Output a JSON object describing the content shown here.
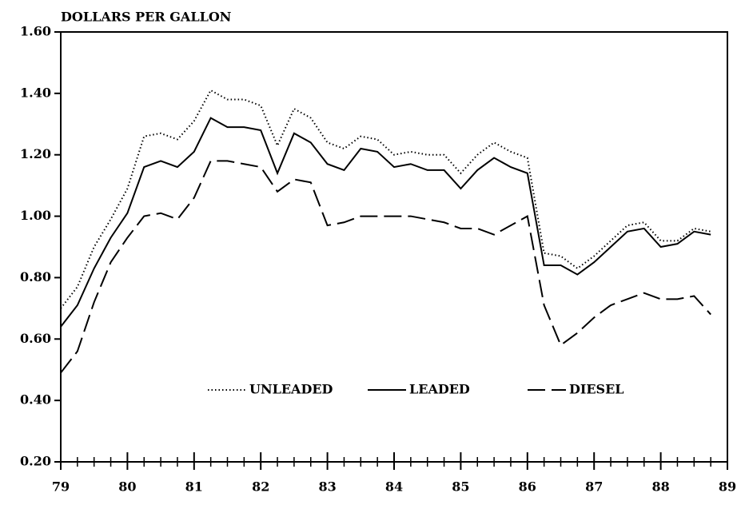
{
  "chart_data": {
    "type": "line",
    "y_axis_label": "DOLLARS PER GALLON",
    "x": [
      79,
      79.25,
      79.5,
      79.75,
      80,
      80.25,
      80.5,
      80.75,
      81,
      81.25,
      81.5,
      81.75,
      82,
      82.25,
      82.5,
      82.75,
      83,
      83.25,
      83.5,
      83.75,
      84,
      84.25,
      84.5,
      84.75,
      85,
      85.25,
      85.5,
      85.75,
      86,
      86.25,
      86.5,
      86.75,
      87,
      87.25,
      87.5,
      87.75,
      88,
      88.25,
      88.5,
      88.75
    ],
    "series": [
      {
        "name": "UNLEADED",
        "color": "#000000",
        "style": "dotted",
        "values": [
          0.7,
          0.77,
          0.9,
          0.99,
          1.09,
          1.26,
          1.27,
          1.25,
          1.31,
          1.41,
          1.38,
          1.38,
          1.36,
          1.23,
          1.35,
          1.32,
          1.24,
          1.22,
          1.26,
          1.25,
          1.2,
          1.21,
          1.2,
          1.2,
          1.14,
          1.2,
          1.24,
          1.21,
          1.19,
          0.88,
          0.87,
          0.83,
          0.87,
          0.92,
          0.97,
          0.98,
          0.92,
          0.92,
          0.96,
          0.95
        ]
      },
      {
        "name": "LEADED",
        "color": "#000000",
        "style": "solid",
        "values": [
          0.64,
          0.71,
          0.83,
          0.93,
          1.01,
          1.16,
          1.18,
          1.16,
          1.21,
          1.32,
          1.29,
          1.29,
          1.28,
          1.14,
          1.27,
          1.24,
          1.17,
          1.15,
          1.22,
          1.21,
          1.16,
          1.17,
          1.15,
          1.15,
          1.09,
          1.15,
          1.19,
          1.16,
          1.14,
          0.84,
          0.84,
          0.81,
          0.85,
          0.9,
          0.95,
          0.96,
          0.9,
          0.91,
          0.95,
          0.94
        ]
      },
      {
        "name": "DIESEL",
        "color": "#000000",
        "style": "dashed",
        "values": [
          0.49,
          0.56,
          0.72,
          0.85,
          0.93,
          1.0,
          1.01,
          0.99,
          1.06,
          1.18,
          1.18,
          1.17,
          1.16,
          1.08,
          1.12,
          1.11,
          0.97,
          0.98,
          1.0,
          1.0,
          1.0,
          1.0,
          0.99,
          0.98,
          0.96,
          0.96,
          0.94,
          0.97,
          1.0,
          0.71,
          0.58,
          0.62,
          0.67,
          0.71,
          0.73,
          0.75,
          0.73,
          0.73,
          0.74,
          0.68
        ]
      }
    ],
    "xlim": [
      79,
      89
    ],
    "xticks": [
      79,
      80,
      81,
      82,
      83,
      84,
      85,
      86,
      87,
      88,
      89
    ],
    "ylim": [
      0.2,
      1.6
    ],
    "yticks": [
      {
        "value": 0.2,
        "label": "0.20"
      },
      {
        "value": 0.4,
        "label": "0.40"
      },
      {
        "value": 0.6,
        "label": "0.60"
      },
      {
        "value": 0.8,
        "label": "0.80"
      },
      {
        "value": 1.0,
        "label": "1.00"
      },
      {
        "value": 1.2,
        "label": "1.20"
      },
      {
        "value": 1.4,
        "label": "1.40"
      },
      {
        "value": 1.6,
        "label": "1.60"
      }
    ],
    "grid": false,
    "legend": "bottom"
  }
}
